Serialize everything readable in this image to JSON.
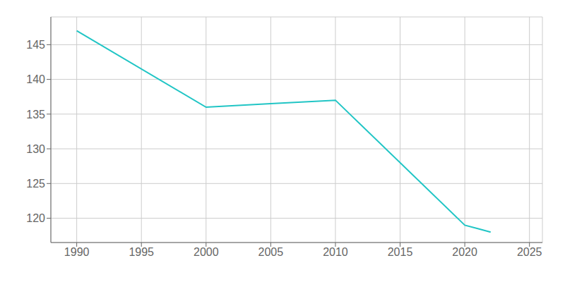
{
  "chart_data": {
    "type": "line",
    "x": [
      1990,
      2000,
      2005,
      2010,
      2020,
      2021,
      2022
    ],
    "values": [
      147,
      136,
      136.5,
      137,
      119,
      118.5,
      118
    ],
    "color": "#20c5c5",
    "xlim": [
      1988,
      2026
    ],
    "ylim": [
      116.5,
      149
    ],
    "xticks": [
      1990,
      1995,
      2000,
      2005,
      2010,
      2015,
      2020,
      2025
    ],
    "yticks": [
      120,
      125,
      130,
      135,
      140,
      145
    ],
    "grid": true
  }
}
